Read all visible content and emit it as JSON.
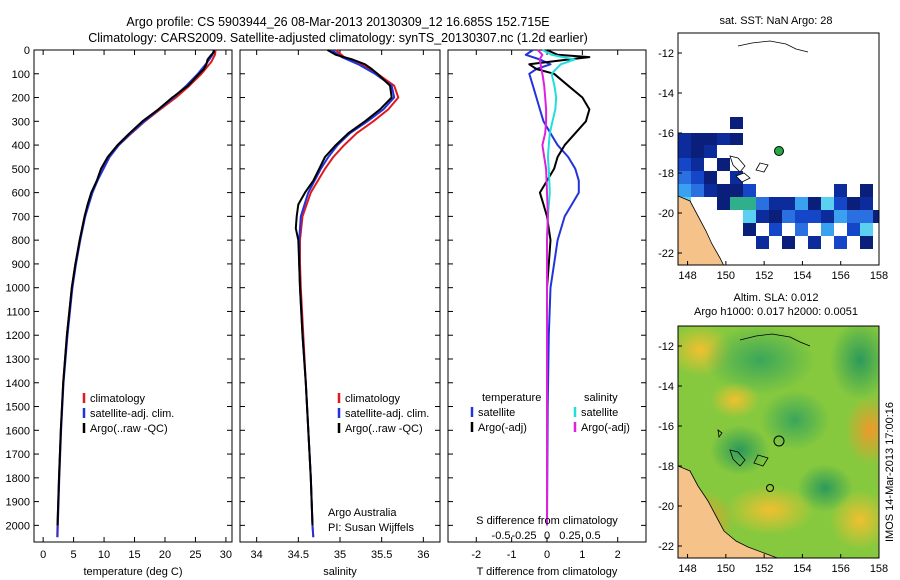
{
  "title": {
    "line1": "Argo profile: CS 5903944_26 08-Mar-2013 20130309_12 16.685S 152.715E",
    "line2": "Climatology: CARS2009. Satellite-adjusted climatology: synTS_20130307.nc (1.2d earlier)"
  },
  "credits": {
    "org": "Argo Australia",
    "pi": "PI: Susan Wijffels",
    "vertical_stamp": "IMOS 14-Mar-2013 17:00:16"
  },
  "chart_data": [
    {
      "type": "line",
      "name": "temperature-profile",
      "xlabel": "temperature (deg C)",
      "ylabel": "",
      "xlim": [
        -1.5,
        31
      ],
      "ylim": [
        2070,
        0
      ],
      "xticks": [
        "0",
        "5",
        "10",
        "15",
        "20",
        "25",
        "30"
      ],
      "xtick_values": [
        0,
        5,
        10,
        15,
        20,
        25,
        30
      ],
      "yticks": [
        "0",
        "100",
        "200",
        "300",
        "400",
        "500",
        "600",
        "700",
        "800",
        "900",
        "1000",
        "1100",
        "1200",
        "1300",
        "1400",
        "1500",
        "1600",
        "1700",
        "1800",
        "1900",
        "2000"
      ],
      "ytick_values": [
        0,
        100,
        200,
        300,
        400,
        500,
        600,
        700,
        800,
        900,
        1000,
        1100,
        1200,
        1300,
        1400,
        1500,
        1600,
        1700,
        1800,
        1900,
        2000
      ],
      "legend": [
        "climatology",
        "satellite-adj. clim.",
        "Argo(..raw -QC)"
      ],
      "legend_colors": [
        "#e0191c",
        "#2233dd",
        "#000000"
      ],
      "series": [
        {
          "name": "climatology",
          "color": "#e0191c",
          "depth": [
            0,
            20,
            50,
            100,
            150,
            200,
            250,
            300,
            350,
            400,
            450,
            500,
            550,
            600,
            650,
            700,
            800,
            900,
            1000,
            1200,
            1400,
            1600,
            1800,
            2000,
            2050
          ],
          "values": [
            28.3,
            28.2,
            27.6,
            26.0,
            24.0,
            21.8,
            19.2,
            16.7,
            14.5,
            12.4,
            10.9,
            9.8,
            8.9,
            8.0,
            7.4,
            6.8,
            6.0,
            5.3,
            4.7,
            3.9,
            3.3,
            2.9,
            2.6,
            2.35,
            2.3
          ]
        },
        {
          "name": "satellite-adj. clim.",
          "color": "#2233dd",
          "depth": [
            0,
            20,
            50,
            100,
            150,
            200,
            250,
            300,
            350,
            400,
            450,
            500,
            550,
            600,
            650,
            700,
            800,
            900,
            1000,
            1200,
            1400,
            1600,
            1800,
            2000,
            2050
          ],
          "values": [
            28.0,
            27.8,
            27.0,
            25.4,
            23.5,
            21.4,
            19.0,
            16.6,
            14.4,
            12.4,
            10.9,
            9.9,
            8.9,
            8.1,
            7.5,
            6.9,
            6.1,
            5.4,
            4.8,
            4.0,
            3.35,
            2.95,
            2.65,
            2.4,
            2.35
          ]
        },
        {
          "name": "Argo(..raw -QC)",
          "color": "#000000",
          "depth": [
            0,
            10,
            20,
            40,
            60,
            80,
            100,
            150,
            200,
            250,
            300,
            350,
            400,
            450,
            500,
            550,
            600,
            650,
            700,
            800,
            900,
            1000,
            1200,
            1400,
            1600,
            1800,
            2000
          ],
          "values": [
            28.1,
            28.0,
            27.6,
            27.0,
            26.8,
            26.4,
            25.6,
            23.8,
            21.2,
            18.9,
            16.3,
            14.2,
            12.2,
            10.6,
            9.5,
            8.8,
            7.9,
            7.3,
            6.8,
            6.0,
            5.3,
            4.7,
            3.9,
            3.3,
            2.9,
            2.6,
            2.35
          ]
        }
      ]
    },
    {
      "type": "line",
      "name": "salinity-profile",
      "xlabel": "salinity",
      "xlim": [
        33.8,
        36.2
      ],
      "ylim": [
        2070,
        0
      ],
      "xticks": [
        "34",
        "34.5",
        "35",
        "35.5",
        "36"
      ],
      "xtick_values": [
        34,
        34.5,
        35,
        35.5,
        36
      ],
      "legend": [
        "climatology",
        "satellite-adj. clim.",
        "Argo(..raw -QC)"
      ],
      "legend_colors": [
        "#e0191c",
        "#2233dd",
        "#000000"
      ],
      "series": [
        {
          "name": "climatology",
          "color": "#e0191c",
          "depth": [
            0,
            30,
            60,
            100,
            150,
            200,
            250,
            300,
            350,
            400,
            450,
            500,
            600,
            700,
            800,
            900,
            1000,
            1200,
            1400,
            1600,
            1800,
            2000,
            2050
          ],
          "values": [
            34.95,
            35.05,
            35.25,
            35.45,
            35.65,
            35.7,
            35.58,
            35.4,
            35.2,
            35.05,
            34.92,
            34.82,
            34.65,
            34.55,
            34.52,
            34.52,
            34.53,
            34.56,
            34.59,
            34.62,
            34.65,
            34.67,
            34.68
          ]
        },
        {
          "name": "satellite-adj. clim.",
          "color": "#2233dd",
          "depth": [
            0,
            30,
            60,
            100,
            150,
            200,
            250,
            300,
            350,
            400,
            450,
            500,
            600,
            700,
            800,
            900,
            1000,
            1200,
            1400,
            1600,
            1800,
            2000,
            2050
          ],
          "values": [
            34.9,
            35.02,
            35.22,
            35.42,
            35.62,
            35.65,
            35.52,
            35.33,
            35.12,
            34.97,
            34.86,
            34.77,
            34.62,
            34.53,
            34.51,
            34.51,
            34.52,
            34.55,
            34.59,
            34.62,
            34.65,
            34.67,
            34.68
          ]
        },
        {
          "name": "Argo(..raw -QC)",
          "color": "#000000",
          "depth": [
            0,
            20,
            40,
            60,
            80,
            100,
            150,
            200,
            250,
            300,
            350,
            400,
            450,
            500,
            550,
            600,
            650,
            700,
            750,
            800,
            900,
            1000,
            1200,
            1400,
            1600,
            1800,
            2000
          ],
          "values": [
            34.85,
            34.95,
            35.15,
            35.3,
            35.38,
            35.45,
            35.6,
            35.62,
            35.48,
            35.3,
            35.1,
            34.95,
            34.82,
            34.75,
            34.68,
            34.58,
            34.5,
            34.48,
            34.47,
            34.5,
            34.51,
            34.52,
            34.55,
            34.59,
            34.62,
            34.65,
            34.67
          ]
        }
      ]
    },
    {
      "type": "line",
      "name": "difference-profile",
      "xlabel": "T difference from climatology",
      "xlabel2": "S difference from climatology",
      "xlim": [
        -2.8,
        2.8
      ],
      "ylim": [
        2070,
        0
      ],
      "xticks": [
        "-2",
        "-1",
        "0",
        "1",
        "2"
      ],
      "xtick_values": [
        -2,
        -1,
        0,
        1,
        2
      ],
      "sticks": [
        "-0.5",
        "-0.25",
        "0",
        "0.25",
        "0.5"
      ],
      "stick_values": [
        -0.5,
        -0.25,
        0,
        0.25,
        0.5
      ],
      "legend_temperature_header": "temperature",
      "legend_salinity_header": "salinity",
      "legend": [
        "satellite",
        "Argo(-adj)",
        "satellite",
        "Argo(-adj)"
      ],
      "legend_colors": [
        "#2233dd",
        "#000000",
        "#22dddd",
        "#dd22dd"
      ],
      "series": [
        {
          "name": "T satellite",
          "color": "#2233dd",
          "depth": [
            0,
            20,
            40,
            60,
            80,
            100,
            150,
            200,
            250,
            300,
            350,
            400,
            450,
            500,
            550,
            600,
            650,
            700,
            800,
            900,
            1000,
            1200,
            1500,
            2000
          ],
          "values": [
            -0.4,
            -0.6,
            -0.2,
            0.1,
            -0.3,
            -0.5,
            -0.4,
            -0.3,
            -0.2,
            -0.1,
            0.1,
            0.3,
            0.6,
            0.8,
            0.9,
            0.9,
            0.7,
            0.5,
            0.3,
            0.2,
            0.1,
            0.05,
            0.02,
            0.0
          ]
        },
        {
          "name": "T Argo",
          "color": "#000000",
          "depth": [
            0,
            20,
            30,
            40,
            60,
            80,
            100,
            150,
            200,
            250,
            300,
            350,
            400,
            450,
            500,
            550,
            600,
            650,
            700,
            800,
            900,
            1000,
            1200,
            1500,
            2000
          ],
          "values": [
            0.0,
            0.3,
            1.2,
            0.6,
            -0.5,
            -0.3,
            0.2,
            0.6,
            1.0,
            1.2,
            1.1,
            0.8,
            0.5,
            0.3,
            0.2,
            0.0,
            -0.2,
            -0.1,
            0.0,
            0.1,
            0.05,
            0.0,
            0.0,
            0.0,
            0.0
          ]
        },
        {
          "name": "S satellite",
          "color": "#22dddd",
          "depth": [
            0,
            20,
            40,
            60,
            80,
            100,
            150,
            200,
            250,
            300,
            350,
            400,
            450,
            500,
            600,
            700,
            800,
            1000,
            1500,
            2000
          ],
          "values": [
            -0.05,
            0.05,
            0.3,
            0.15,
            0.1,
            0.05,
            0.08,
            0.1,
            0.09,
            0.06,
            0.03,
            0.02,
            0.01,
            0.02,
            0.03,
            0.01,
            0.0,
            0.0,
            0.0,
            0.0
          ]
        },
        {
          "name": "S Argo",
          "color": "#dd22dd",
          "depth": [
            0,
            20,
            40,
            60,
            80,
            100,
            150,
            200,
            250,
            300,
            350,
            400,
            450,
            500,
            600,
            700,
            800,
            1000,
            1500,
            2000
          ],
          "values": [
            -0.1,
            -0.05,
            -0.08,
            -0.07,
            -0.06,
            -0.05,
            -0.03,
            -0.02,
            -0.01,
            -0.01,
            -0.02,
            -0.05,
            -0.03,
            -0.01,
            0.0,
            0.01,
            0.0,
            0.0,
            0.0,
            0.0
          ]
        }
      ]
    },
    {
      "type": "heatmap",
      "name": "sst-map",
      "title": "sat. SST: NaN Argo: 28",
      "xlim": [
        147.5,
        158
      ],
      "ylim": [
        -22.6,
        -11
      ],
      "xticks": [
        "148",
        "150",
        "152",
        "154",
        "156",
        "158"
      ],
      "xtick_values": [
        148,
        150,
        152,
        154,
        156,
        158
      ],
      "yticks": [
        "-12",
        "-14",
        "-16",
        "-18",
        "-20",
        "-22"
      ],
      "ytick_values": [
        -12,
        -14,
        -16,
        -18,
        -20,
        -22
      ],
      "float_position": {
        "lon": 152.715,
        "lat": -16.685
      }
    },
    {
      "type": "heatmap",
      "name": "sla-map",
      "title": "Altim. SLA: 0.012",
      "subtitle": "Argo h1000: 0.017 h2000: 0.0051",
      "xlim": [
        147.5,
        158
      ],
      "ylim": [
        -22.6,
        -11
      ],
      "xticks": [
        "148",
        "150",
        "152",
        "154",
        "156",
        "158"
      ],
      "xtick_values": [
        148,
        150,
        152,
        154,
        156,
        158
      ],
      "yticks": [
        "-12",
        "-14",
        "-16",
        "-18",
        "-20",
        "-22"
      ],
      "ytick_values": [
        -12,
        -14,
        -16,
        -18,
        -20,
        -22
      ],
      "float_position": {
        "lon": 152.715,
        "lat": -16.685
      }
    }
  ]
}
